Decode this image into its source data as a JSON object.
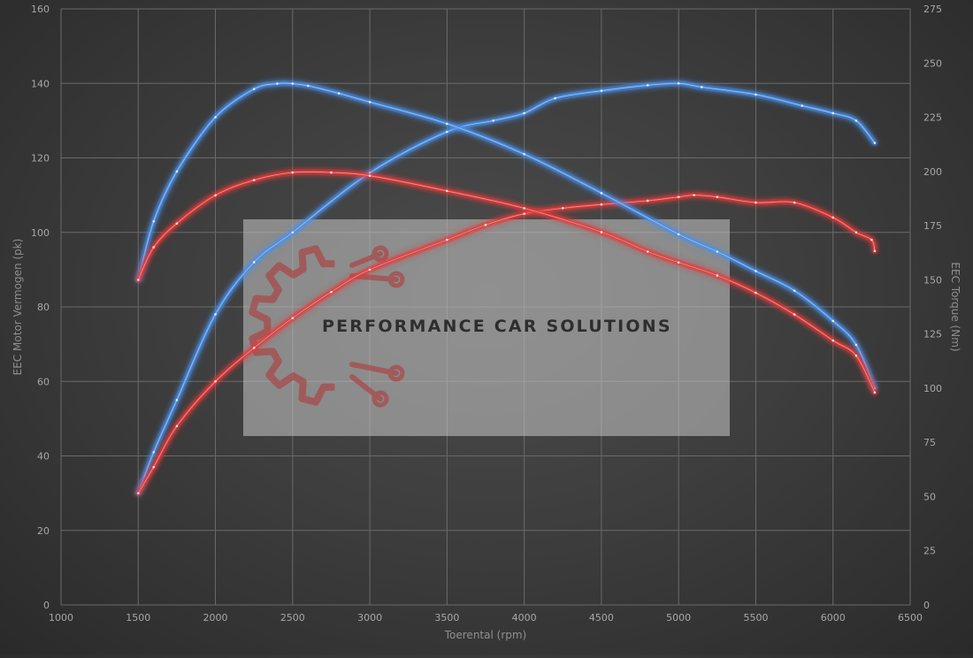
{
  "chart_data": {
    "type": "line",
    "xlabel": "Toerental (rpm)",
    "ylabel_left": "EEC Motor Vermogen (pk)",
    "ylabel_right": "EEC Torque (Nm)",
    "xlim": [
      1000,
      6500
    ],
    "ylim_left": [
      0,
      160
    ],
    "ylim_right": [
      0,
      275
    ],
    "x_ticks": [
      1000,
      1500,
      2000,
      2500,
      3000,
      3500,
      4000,
      4500,
      5000,
      5500,
      6000,
      6500
    ],
    "y_ticks_left": [
      0,
      20,
      40,
      60,
      80,
      100,
      120,
      140,
      160
    ],
    "y_ticks_right": [
      0,
      25,
      50,
      75,
      100,
      125,
      150,
      175,
      200,
      225,
      250,
      275
    ],
    "grid": true,
    "series": [
      {
        "axis": "left",
        "color": "#4a8fe8",
        "x": [
          1500,
          1600,
          1750,
          2000,
          2250,
          2500,
          3000,
          3500,
          3800,
          4000,
          4200,
          4500,
          4800,
          5000,
          5150,
          5500,
          5800,
          6000,
          6150,
          6270
        ],
        "y": [
          30,
          41,
          55,
          78,
          92,
          100,
          116,
          127,
          130,
          132,
          136,
          138,
          139.5,
          140,
          139,
          137,
          134,
          132,
          130,
          124
        ]
      },
      {
        "axis": "left",
        "color": "#e03a3a",
        "x": [
          1500,
          1600,
          1750,
          2000,
          2250,
          2500,
          2750,
          3000,
          3500,
          3750,
          4000,
          4250,
          4500,
          4800,
          5000,
          5100,
          5250,
          5500,
          5750,
          6000,
          6150,
          6250,
          6270
        ],
        "y": [
          30,
          37,
          48,
          60,
          69,
          77,
          84,
          90,
          98,
          102,
          105,
          106.5,
          107.5,
          108.5,
          109.5,
          110,
          109.5,
          108,
          108,
          104,
          100,
          98,
          95
        ]
      },
      {
        "axis": "right",
        "color": "#4a8fe8",
        "x": [
          1500,
          1600,
          1750,
          2000,
          2250,
          2400,
          2500,
          2600,
          2800,
          3000,
          3500,
          4000,
          4500,
          5000,
          5250,
          5500,
          5750,
          6000,
          6150,
          6270
        ],
        "y": [
          150,
          177,
          200,
          225,
          238,
          240.5,
          240.5,
          239.5,
          236,
          232,
          222,
          208,
          190,
          171,
          163,
          154,
          145,
          131,
          120,
          100
        ]
      },
      {
        "axis": "right",
        "color": "#e03a3a",
        "x": [
          1500,
          1600,
          1750,
          2000,
          2250,
          2500,
          2750,
          3000,
          3500,
          4000,
          4500,
          4800,
          5000,
          5250,
          5500,
          5750,
          6000,
          6150,
          6270
        ],
        "y": [
          150,
          165,
          176,
          189,
          196,
          199.5,
          199.5,
          198,
          191,
          183,
          172,
          163,
          158,
          152,
          144,
          134,
          122,
          115,
          98
        ]
      }
    ]
  },
  "watermark": {
    "text": "PERFORMANCE CAR SOLUTIONS",
    "color": "#a84a4a"
  }
}
